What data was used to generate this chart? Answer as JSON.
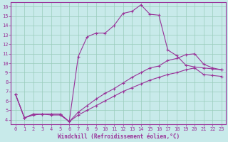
{
  "xlabel": "Windchill (Refroidissement éolien,°C)",
  "bg_color": "#c8eaea",
  "line_color": "#993399",
  "grid_color": "#99ccbb",
  "xlim": [
    -0.5,
    23.5
  ],
  "ylim": [
    3.5,
    16.5
  ],
  "xticks": [
    0,
    1,
    2,
    3,
    4,
    5,
    6,
    7,
    8,
    9,
    10,
    11,
    12,
    13,
    14,
    15,
    16,
    17,
    18,
    19,
    20,
    21,
    22,
    23
  ],
  "yticks": [
    4,
    5,
    6,
    7,
    8,
    9,
    10,
    11,
    12,
    13,
    14,
    15,
    16
  ],
  "line1_x": [
    0,
    1,
    2,
    3,
    4,
    5,
    6,
    7,
    8,
    9,
    10,
    11,
    12,
    13,
    14,
    15,
    16,
    17,
    18,
    19,
    20,
    21,
    22,
    23
  ],
  "line1_y": [
    6.7,
    4.2,
    4.6,
    4.6,
    4.6,
    4.6,
    3.8,
    10.7,
    12.8,
    13.2,
    13.2,
    14.0,
    15.3,
    15.5,
    16.2,
    15.2,
    15.1,
    11.4,
    10.8,
    9.8,
    9.6,
    9.5,
    9.4,
    9.3
  ],
  "line2_x": [
    0,
    1,
    2,
    3,
    4,
    5,
    6,
    7,
    8,
    9,
    10,
    11,
    12,
    13,
    14,
    15,
    16,
    17,
    18,
    19,
    20,
    21,
    22,
    23
  ],
  "line2_y": [
    6.7,
    4.2,
    4.6,
    4.6,
    4.6,
    4.6,
    3.8,
    4.8,
    5.5,
    6.2,
    6.8,
    7.3,
    7.9,
    8.5,
    9.0,
    9.5,
    9.7,
    10.3,
    10.5,
    10.9,
    11.0,
    9.9,
    9.5,
    9.3
  ],
  "line3_x": [
    0,
    1,
    2,
    3,
    4,
    5,
    6,
    7,
    8,
    9,
    10,
    11,
    12,
    13,
    14,
    15,
    16,
    17,
    18,
    19,
    20,
    21,
    22,
    23
  ],
  "line3_y": [
    6.7,
    4.2,
    4.5,
    4.6,
    4.5,
    4.5,
    3.8,
    4.5,
    5.0,
    5.5,
    6.0,
    6.5,
    7.0,
    7.4,
    7.8,
    8.2,
    8.5,
    8.8,
    9.0,
    9.3,
    9.5,
    8.8,
    8.7,
    8.6
  ]
}
